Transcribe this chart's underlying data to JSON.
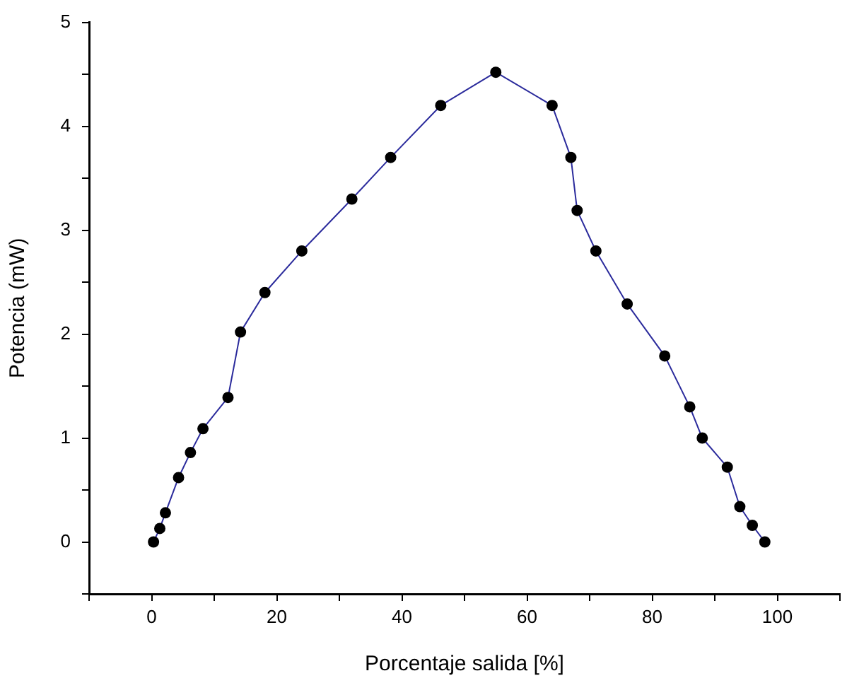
{
  "chart_data": {
    "type": "line",
    "xlabel": "Porcentaje salida [%]",
    "ylabel": "Potencia (mW)",
    "xlim": [
      -10,
      110
    ],
    "xticks": [
      {
        "value": -10,
        "label": null
      },
      0,
      {
        "value": 10,
        "label": null
      },
      20,
      {
        "value": 30,
        "label": null
      },
      40,
      {
        "value": 50,
        "label": null
      },
      60,
      {
        "value": 70,
        "label": null
      },
      80,
      {
        "value": 90,
        "label": null
      },
      100,
      {
        "value": 110,
        "label": null
      }
    ],
    "ylim": [
      -0.5,
      5
    ],
    "yticks": [
      {
        "value": -0.5,
        "label": null
      },
      0,
      {
        "value": 0.5,
        "label": null
      },
      1,
      {
        "value": 1.5,
        "label": null
      },
      2,
      {
        "value": 2.5,
        "label": null
      },
      3,
      {
        "value": 3.5,
        "label": null
      },
      4,
      {
        "value": 4.5,
        "label": null
      },
      5
    ],
    "grid": false,
    "legend": false,
    "marker": "circle",
    "line_style": "solid",
    "series": [
      {
        "color": "#2b2b9c",
        "x": [
          0.3,
          1.3,
          2.2,
          4.3,
          6.2,
          8.2,
          12.2,
          14.2,
          18.1,
          24,
          32,
          38.2,
          46.2,
          55,
          64,
          67,
          68,
          71,
          76,
          82,
          86,
          88,
          92,
          94,
          96,
          98
        ],
        "values": [
          0,
          0.13,
          0.28,
          0.62,
          0.86,
          1.09,
          1.39,
          2.02,
          2.4,
          2.8,
          3.3,
          3.7,
          4.2,
          4.52,
          4.2,
          3.7,
          3.19,
          2.8,
          2.29,
          1.79,
          1.3,
          1,
          0.72,
          0.34,
          0.16,
          0
        ]
      }
    ]
  }
}
